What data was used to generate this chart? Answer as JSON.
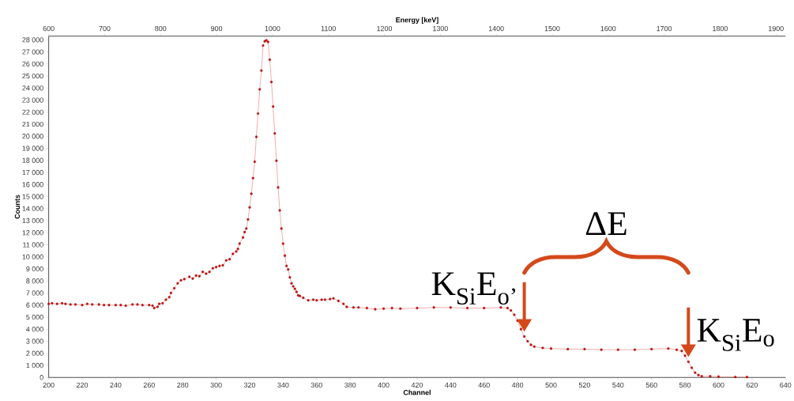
{
  "chart_data": {
    "type": "line",
    "xlabel": "Channel",
    "ylabel": "Counts",
    "x2label": "Energy [keV]",
    "x": [
      200,
      202,
      205,
      208,
      210,
      213,
      216,
      220,
      223,
      226,
      230,
      233,
      236,
      240,
      243,
      246,
      250,
      253,
      256,
      260,
      262,
      263,
      265,
      266,
      268,
      270,
      272,
      273,
      275,
      277,
      279,
      281,
      284,
      286,
      288,
      290,
      292,
      294,
      296,
      298,
      300,
      302,
      304,
      306,
      308,
      310,
      312,
      313,
      314,
      316,
      317,
      318,
      319,
      320,
      321,
      322,
      323,
      324,
      325,
      326,
      327,
      328,
      329,
      330,
      331,
      332,
      333,
      334,
      335,
      336,
      337,
      338,
      339,
      340,
      341,
      342,
      343,
      344,
      345,
      346,
      347,
      348,
      349,
      350,
      352,
      355,
      358,
      360,
      363,
      365,
      368,
      370,
      373,
      376,
      378,
      382,
      385,
      390,
      395,
      400,
      405,
      410,
      420,
      430,
      440,
      450,
      460,
      470,
      474,
      476,
      478,
      480,
      482,
      484,
      486,
      488,
      490,
      495,
      500,
      510,
      520,
      530,
      540,
      550,
      560,
      570,
      575,
      578,
      580,
      582,
      584,
      586,
      588,
      590,
      595,
      600,
      610,
      617
    ],
    "series": [
      {
        "color": "#e00000",
        "values": [
          6100,
          6150,
          6100,
          6150,
          6100,
          6050,
          6050,
          6000,
          6100,
          6050,
          6050,
          6000,
          6000,
          6000,
          6000,
          5950,
          6050,
          6050,
          6000,
          6000,
          5950,
          5750,
          5850,
          6100,
          6150,
          6450,
          6650,
          7000,
          7400,
          7800,
          8050,
          8150,
          8350,
          8200,
          8450,
          8400,
          8750,
          8600,
          8750,
          9050,
          9150,
          9250,
          9300,
          9700,
          9800,
          10250,
          10450,
          10650,
          11100,
          11600,
          12050,
          12350,
          13100,
          14100,
          15230,
          16520,
          17890,
          19950,
          21880,
          23890,
          25440,
          27520,
          27880,
          27950,
          27820,
          26340,
          24500,
          22460,
          20230,
          17970,
          15750,
          13850,
          12350,
          11100,
          10100,
          9250,
          8950,
          8300,
          7800,
          7550,
          7350,
          7100,
          6800,
          6750,
          6600,
          6400,
          6450,
          6400,
          6450,
          6450,
          6500,
          6550,
          6350,
          6100,
          5850,
          5800,
          5800,
          5750,
          5650,
          5700,
          5750,
          5700,
          5750,
          5800,
          5800,
          5750,
          5750,
          5800,
          5750,
          5550,
          5200,
          4700,
          4000,
          3400,
          3000,
          2700,
          2550,
          2450,
          2400,
          2350,
          2350,
          2300,
          2300,
          2300,
          2350,
          2400,
          2300,
          2200,
          1800,
          1300,
          800,
          400,
          200,
          100,
          100,
          70,
          40,
          30
        ]
      }
    ],
    "xlim": [
      200,
      640
    ],
    "xticks": [
      200,
      220,
      240,
      260,
      280,
      300,
      320,
      340,
      360,
      380,
      400,
      420,
      440,
      460,
      480,
      500,
      520,
      540,
      560,
      580,
      600,
      620,
      640
    ],
    "x2lim": [
      600,
      1917
    ],
    "x2ticks": [
      600,
      700,
      800,
      900,
      1000,
      1100,
      1200,
      1300,
      1400,
      1500,
      1600,
      1700,
      1800,
      1900
    ],
    "ylim": [
      0,
      28300
    ],
    "yticks": [
      0,
      {
        "value": 1000,
        "label": "1 000"
      },
      {
        "value": 2000,
        "label": "2 000"
      },
      {
        "value": 3000,
        "label": "3 000"
      },
      {
        "value": 4000,
        "label": "4 000"
      },
      {
        "value": 5000,
        "label": "5 000"
      },
      {
        "value": 6000,
        "label": "6 000"
      },
      {
        "value": 7000,
        "label": "7 000"
      },
      {
        "value": 8000,
        "label": "8 000"
      },
      {
        "value": 9000,
        "label": "9 000"
      },
      {
        "value": 10000,
        "label": "10 000"
      },
      {
        "value": 11000,
        "label": "11 000"
      },
      {
        "value": 12000,
        "label": "12 000"
      },
      {
        "value": 13000,
        "label": "13 000"
      },
      {
        "value": 14000,
        "label": "14 000"
      },
      {
        "value": 15000,
        "label": "15 000"
      },
      {
        "value": 16000,
        "label": "16 000"
      },
      {
        "value": 17000,
        "label": "17 000"
      },
      {
        "value": 18000,
        "label": "18 000"
      },
      {
        "value": 19000,
        "label": "19 000"
      },
      {
        "value": 20000,
        "label": "20 000"
      },
      {
        "value": 21000,
        "label": "21 000"
      },
      {
        "value": 22000,
        "label": "22 000"
      },
      {
        "value": 23000,
        "label": "23 000"
      },
      {
        "value": 24000,
        "label": "24 000"
      },
      {
        "value": 25000,
        "label": "25 000"
      },
      {
        "value": 26000,
        "label": "26 000"
      },
      {
        "value": 27000,
        "label": "27 000"
      },
      {
        "value": 28000,
        "label": "28 000"
      }
    ],
    "marker": "circle",
    "line_style": "solid",
    "grid": false,
    "annotations": [
      {
        "text": "K$_{Si}$E$_{o’}$",
        "x": 484,
        "y": 3400
      },
      {
        "text": "K$_{Si}$E$_{o}$",
        "x": 582,
        "y": 1300
      },
      "ΔE"
    ]
  }
}
